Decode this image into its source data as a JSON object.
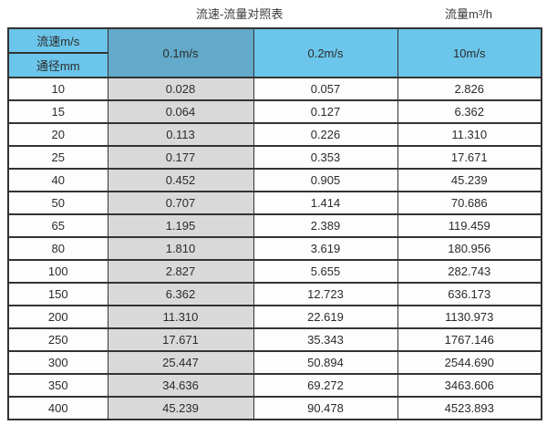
{
  "page": {
    "title": "流速-流量对照表",
    "unit_label": "流量m³/h"
  },
  "table": {
    "corner": {
      "top": "流速m/s",
      "bottom": "通径mm"
    },
    "velocity_columns": [
      "0.1m/s",
      "0.2m/s",
      "10m/s"
    ],
    "rows": [
      {
        "diameter": "10",
        "values": [
          "0.028",
          "0.057",
          "2.826"
        ]
      },
      {
        "diameter": "15",
        "values": [
          "0.064",
          "0.127",
          "6.362"
        ]
      },
      {
        "diameter": "20",
        "values": [
          "0.113",
          "0.226",
          "11.310"
        ]
      },
      {
        "diameter": "25",
        "values": [
          "0.177",
          "0.353",
          "17.671"
        ]
      },
      {
        "diameter": "40",
        "values": [
          "0.452",
          "0.905",
          "45.239"
        ]
      },
      {
        "diameter": "50",
        "values": [
          "0.707",
          "1.414",
          "70.686"
        ]
      },
      {
        "diameter": "65",
        "values": [
          "1.195",
          "2.389",
          "119.459"
        ]
      },
      {
        "diameter": "80",
        "values": [
          "1.810",
          "3.619",
          "180.956"
        ]
      },
      {
        "diameter": "100",
        "values": [
          "2.827",
          "5.655",
          "282.743"
        ]
      },
      {
        "diameter": "150",
        "values": [
          "6.362",
          "12.723",
          "636.173"
        ]
      },
      {
        "diameter": "200",
        "values": [
          "11.310",
          "22.619",
          "1130.973"
        ]
      },
      {
        "diameter": "250",
        "values": [
          "17.671",
          "35.343",
          "1767.146"
        ]
      },
      {
        "diameter": "300",
        "values": [
          "25.447",
          "50.894",
          "2544.690"
        ]
      },
      {
        "diameter": "350",
        "values": [
          "34.636",
          "69.272",
          "3463.606"
        ]
      },
      {
        "diameter": "400",
        "values": [
          "45.239",
          "90.478",
          "4523.893"
        ]
      }
    ]
  },
  "colors": {
    "header_blue": "#6cc5ea",
    "header_steel_blue": "#63a9c9",
    "first_column_gray": "#d9d9d9",
    "border": "#333333"
  },
  "chart_data": {
    "type": "table",
    "title": "流速-流量对照表",
    "unit_label": "流量m³/h",
    "row_header": "通径mm",
    "col_header": "流速m/s",
    "columns": [
      "0.1m/s",
      "0.2m/s",
      "10m/s"
    ],
    "diameters_mm": [
      10,
      15,
      20,
      25,
      40,
      50,
      65,
      80,
      100,
      150,
      200,
      250,
      300,
      350,
      400
    ],
    "flow_m3h": {
      "v0.1": [
        0.028,
        0.064,
        0.113,
        0.177,
        0.452,
        0.707,
        1.195,
        1.81,
        2.827,
        6.362,
        11.31,
        17.671,
        25.447,
        34.636,
        45.239
      ],
      "v0.2": [
        0.057,
        0.127,
        0.226,
        0.353,
        0.905,
        1.414,
        2.389,
        3.619,
        5.655,
        12.723,
        22.619,
        35.343,
        50.894,
        69.272,
        90.478
      ],
      "v10": [
        2.826,
        6.362,
        11.31,
        17.671,
        45.239,
        70.686,
        119.459,
        180.956,
        282.743,
        636.173,
        1130.973,
        1767.146,
        2544.69,
        3463.606,
        4523.893
      ]
    }
  }
}
